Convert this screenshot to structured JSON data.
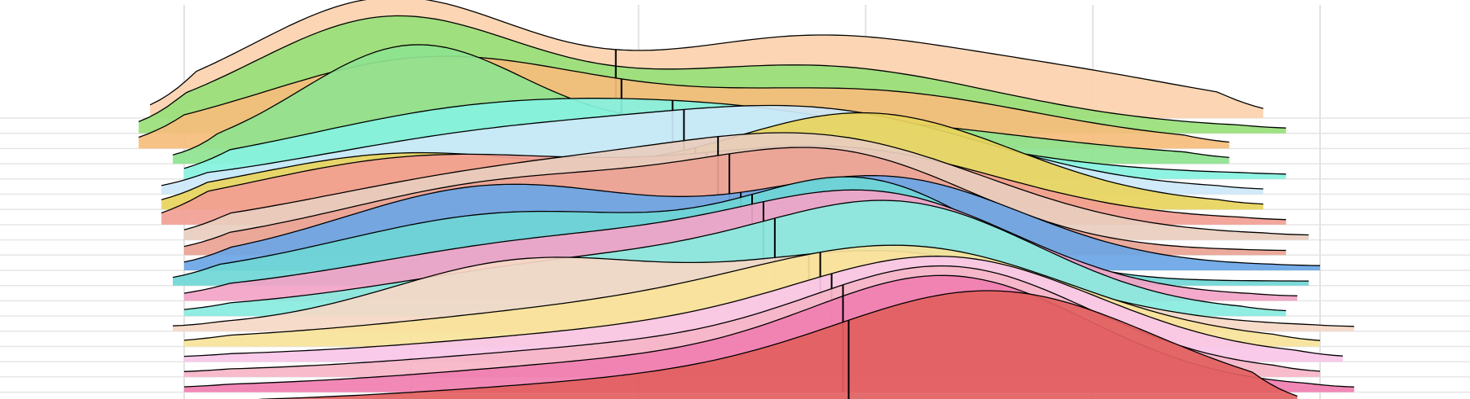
{
  "chart_data": {
    "type": "area",
    "style": "ridgeline",
    "grid": true,
    "legend": "none",
    "x_range": [
      0,
      1
    ],
    "x_ticks": [
      0,
      0.2,
      0.4,
      0.6,
      0.8,
      1.0
    ],
    "series": [
      {
        "color": "#FCD3AE",
        "range": [
          -0.03,
          0.95
        ],
        "peaks": [
          [
            0.18,
            1.0,
            0.12
          ],
          [
            0.55,
            0.65,
            0.14
          ],
          [
            0.8,
            0.25,
            0.12
          ]
        ],
        "median": 0.38
      },
      {
        "color": "#98E07A",
        "range": [
          -0.04,
          0.97
        ],
        "peaks": [
          [
            0.18,
            0.95,
            0.12
          ],
          [
            0.55,
            0.55,
            0.16
          ]
        ],
        "median": 0.38
      },
      {
        "color": "#F5BD7B",
        "range": [
          -0.04,
          0.92
        ],
        "peaks": [
          [
            0.22,
            0.75,
            0.15
          ],
          [
            0.6,
            0.45,
            0.15
          ]
        ],
        "median": 0.385
      },
      {
        "color": "#8EE38F",
        "range": [
          -0.01,
          0.92
        ],
        "peaks": [
          [
            0.2,
            0.95,
            0.1
          ],
          [
            0.55,
            0.35,
            0.18
          ]
        ],
        "median": 0.39
      },
      {
        "color": "#86F2E0",
        "range": [
          0.0,
          0.97
        ],
        "peaks": [
          [
            0.25,
            0.5,
            0.16
          ],
          [
            0.52,
            0.45,
            0.16
          ]
        ],
        "median": 0.43
      },
      {
        "color": "#CDE8F8",
        "range": [
          -0.02,
          0.95
        ],
        "peaks": [
          [
            0.3,
            0.5,
            0.18
          ],
          [
            0.58,
            0.55,
            0.14
          ]
        ],
        "median": 0.44
      },
      {
        "color": "#E8D45C",
        "range": [
          -0.02,
          0.95
        ],
        "peaks": [
          [
            0.2,
            0.45,
            0.14
          ],
          [
            0.6,
            0.8,
            0.13
          ]
        ],
        "median": 0.45
      },
      {
        "color": "#F29E92",
        "range": [
          -0.02,
          0.97
        ],
        "peaks": [
          [
            0.22,
            0.55,
            0.16
          ],
          [
            0.58,
            0.6,
            0.14
          ]
        ],
        "median": 0.46
      },
      {
        "color": "#E8CDBE",
        "range": [
          0.0,
          0.99
        ],
        "peaks": [
          [
            0.3,
            0.55,
            0.18
          ],
          [
            0.58,
            0.7,
            0.14
          ]
        ],
        "median": 0.47
      },
      {
        "color": "#EAA394",
        "range": [
          0.0,
          0.97
        ],
        "peaks": [
          [
            0.3,
            0.6,
            0.16
          ],
          [
            0.58,
            0.75,
            0.12
          ]
        ],
        "median": 0.48
      },
      {
        "color": "#6AA6E6",
        "range": [
          0.0,
          1.0
        ],
        "peaks": [
          [
            0.28,
            0.7,
            0.14
          ],
          [
            0.62,
            0.75,
            0.12
          ]
        ],
        "median": 0.49
      },
      {
        "color": "#6FD6D6",
        "range": [
          -0.01,
          0.99
        ],
        "peaks": [
          [
            0.3,
            0.6,
            0.16
          ],
          [
            0.6,
            0.8,
            0.1
          ]
        ],
        "median": 0.5
      },
      {
        "color": "#F2A3C7",
        "range": [
          0.0,
          0.98
        ],
        "peaks": [
          [
            0.35,
            0.5,
            0.18
          ],
          [
            0.62,
            0.75,
            0.12
          ]
        ],
        "median": 0.51
      },
      {
        "color": "#88EADE",
        "range": [
          0.0,
          0.97
        ],
        "peaks": [
          [
            0.38,
            0.45,
            0.18
          ],
          [
            0.64,
            0.8,
            0.12
          ]
        ],
        "median": 0.52
      },
      {
        "color": "#F6D8C5",
        "range": [
          -0.01,
          1.03
        ],
        "peaks": [
          [
            0.3,
            0.55,
            0.12
          ],
          [
            0.62,
            0.65,
            0.14
          ]
        ],
        "median": 0.55
      },
      {
        "color": "#F8E39A",
        "range": [
          0.0,
          1.0
        ],
        "peaks": [
          [
            0.4,
            0.3,
            0.2
          ],
          [
            0.65,
            0.7,
            0.14
          ]
        ],
        "median": 0.56
      },
      {
        "color": "#F8C6E8",
        "range": [
          0.0,
          1.02
        ],
        "peaks": [
          [
            0.45,
            0.25,
            0.2
          ],
          [
            0.68,
            0.75,
            0.13
          ]
        ],
        "median": 0.57
      },
      {
        "color": "#F6B5C8",
        "range": [
          0.0,
          1.0
        ],
        "peaks": [
          [
            0.45,
            0.25,
            0.2
          ],
          [
            0.68,
            0.8,
            0.12
          ]
        ],
        "median": 0.58
      },
      {
        "color": "#F07EB0",
        "range": [
          0.0,
          1.03
        ],
        "peaks": [
          [
            0.45,
            0.25,
            0.2
          ],
          [
            0.68,
            0.85,
            0.12
          ]
        ],
        "median": 0.58
      },
      {
        "color": "#E26060",
        "range": [
          0.03,
          0.98
        ],
        "peaks": [
          [
            0.45,
            0.2,
            0.2
          ],
          [
            0.72,
            0.9,
            0.14
          ]
        ],
        "median": 0.585
      }
    ]
  }
}
